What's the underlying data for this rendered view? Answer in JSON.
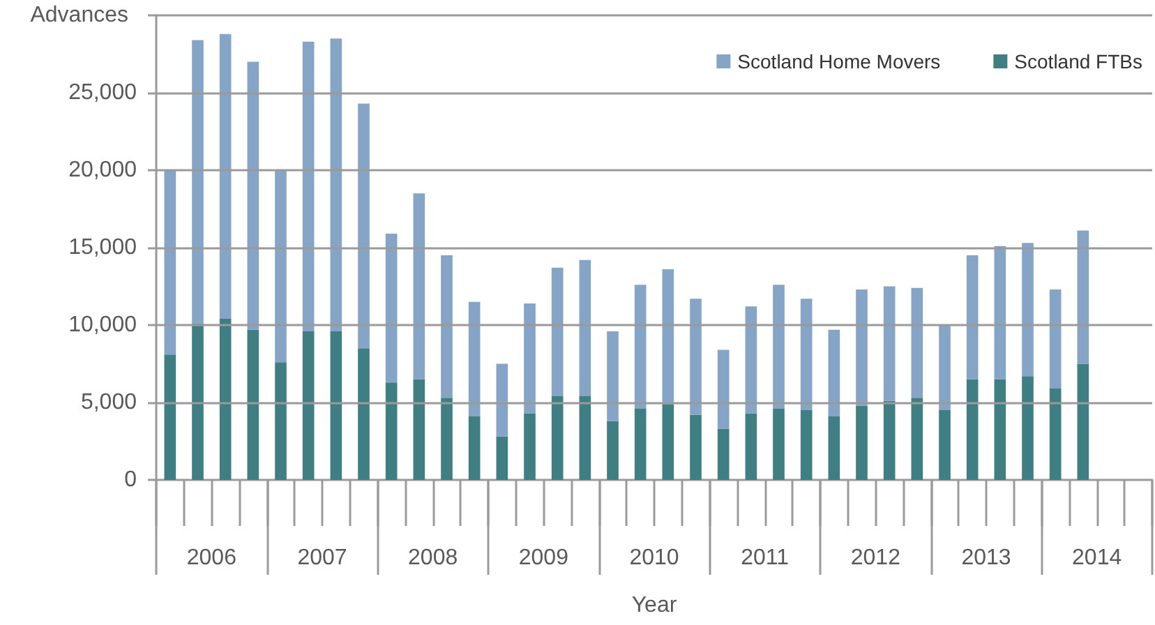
{
  "chart_data": {
    "type": "bar",
    "stacked": true,
    "xlabel": "Year",
    "ylabel": "Advances",
    "categories": [
      null,
      "2006",
      null,
      null,
      null,
      "2007",
      null,
      null,
      null,
      "2008",
      null,
      null,
      null,
      "2009",
      null,
      null,
      null,
      "2010",
      null,
      null,
      null,
      "2011",
      null,
      null,
      null,
      "2012",
      null,
      null,
      null,
      "2013",
      null,
      null,
      null,
      "2014",
      null,
      null
    ],
    "series": [
      {
        "name": "Scotland FTBs",
        "color": "#3f7f83",
        "values": [
          8100,
          10100,
          10400,
          9700,
          7600,
          9600,
          9600,
          8500,
          6300,
          6500,
          5300,
          4100,
          2800,
          4300,
          5400,
          5400,
          3800,
          4600,
          4900,
          4200,
          3300,
          4300,
          4600,
          4500,
          4100,
          4800,
          5100,
          5300,
          4500,
          6500,
          6500,
          6700,
          5900,
          7500,
          null,
          null
        ]
      },
      {
        "name": "Scotland Home Movers",
        "color": "#86a5c6",
        "values": [
          11900,
          18300,
          18400,
          17300,
          12400,
          18700,
          18900,
          15800,
          9600,
          12000,
          9200,
          7400,
          4700,
          7100,
          8300,
          8800,
          5800,
          8000,
          8700,
          7500,
          5100,
          6900,
          8000,
          7200,
          5600,
          7500,
          7400,
          7100,
          5500,
          8000,
          8600,
          8600,
          6400,
          8600,
          null,
          null
        ]
      }
    ],
    "ylim": [
      0,
      30000
    ],
    "yticks": [
      0,
      {
        "value": 5000,
        "label": "5,000"
      },
      {
        "value": 10000,
        "label": "10,000"
      },
      {
        "value": 15000,
        "label": "15,000"
      },
      {
        "value": 20000,
        "label": "20,000"
      },
      {
        "value": 25000,
        "label": "25,000"
      },
      {
        "value": 30000,
        "label": null
      }
    ],
    "grid": "y",
    "legend": "top right"
  }
}
